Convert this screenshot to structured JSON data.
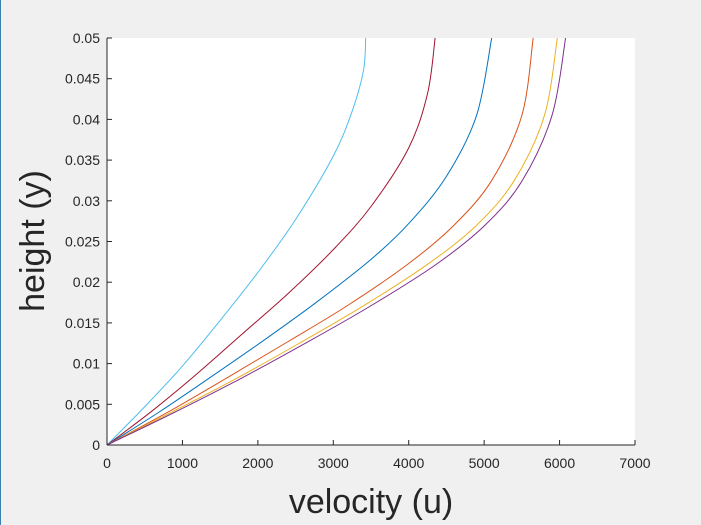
{
  "chart_data": {
    "type": "line",
    "title": "",
    "xlabel": "velocity (u)",
    "ylabel": "height (y)",
    "xlim": [
      0,
      7000
    ],
    "ylim": [
      0,
      0.05
    ],
    "xticks": [
      0,
      1000,
      2000,
      3000,
      4000,
      5000,
      6000,
      7000
    ],
    "xtick_labels": [
      "0",
      "1000",
      "2000",
      "3000",
      "4000",
      "5000",
      "6000",
      "7000"
    ],
    "yticks": [
      0,
      0.005,
      0.01,
      0.015,
      0.02,
      0.025,
      0.03,
      0.035,
      0.04,
      0.045,
      0.05
    ],
    "ytick_labels": [
      "0",
      "0.005",
      "0.01",
      "0.015",
      "0.02",
      "0.025",
      "0.03",
      "0.035",
      "0.04",
      "0.045",
      "0.05"
    ],
    "grid": false,
    "legend": "none",
    "series": [
      {
        "color": "#4DBEEE",
        "x": [
          0,
          500,
          1000,
          1500,
          2000,
          2500,
          3000,
          3250,
          3400,
          3430
        ],
        "y": [
          0,
          0.0047,
          0.0097,
          0.0153,
          0.0212,
          0.0277,
          0.0355,
          0.041,
          0.046,
          0.05
        ]
      },
      {
        "color": "#A2142F",
        "x": [
          0,
          600,
          1200,
          1800,
          2400,
          3000,
          3500,
          4000,
          4250,
          4350
        ],
        "y": [
          0,
          0.0042,
          0.0088,
          0.0137,
          0.0186,
          0.024,
          0.0293,
          0.0365,
          0.0432,
          0.05
        ]
      },
      {
        "color": "#0072BD",
        "x": [
          0,
          700,
          1400,
          2100,
          2800,
          3500,
          4000,
          4500,
          4900,
          5100
        ],
        "y": [
          0,
          0.0041,
          0.0085,
          0.013,
          0.0177,
          0.0228,
          0.0272,
          0.033,
          0.0405,
          0.05
        ]
      },
      {
        "color": "#D95319",
        "x": [
          0,
          800,
          1600,
          2400,
          3200,
          4000,
          4600,
          5100,
          5500,
          5650
        ],
        "y": [
          0,
          0.004,
          0.0083,
          0.0127,
          0.0172,
          0.0223,
          0.027,
          0.0325,
          0.0405,
          0.05
        ]
      },
      {
        "color": "#EDB120",
        "x": [
          0,
          850,
          1700,
          2550,
          3400,
          4250,
          4900,
          5400,
          5800,
          5970
        ],
        "y": [
          0,
          0.004,
          0.0081,
          0.0125,
          0.0171,
          0.0222,
          0.027,
          0.0325,
          0.0405,
          0.05
        ]
      },
      {
        "color": "#7E2F8E",
        "x": [
          0,
          870,
          1740,
          2610,
          3480,
          4350,
          5000,
          5500,
          5900,
          6080
        ],
        "y": [
          0,
          0.0039,
          0.008,
          0.0124,
          0.017,
          0.0221,
          0.0269,
          0.0324,
          0.0405,
          0.05
        ]
      }
    ]
  }
}
